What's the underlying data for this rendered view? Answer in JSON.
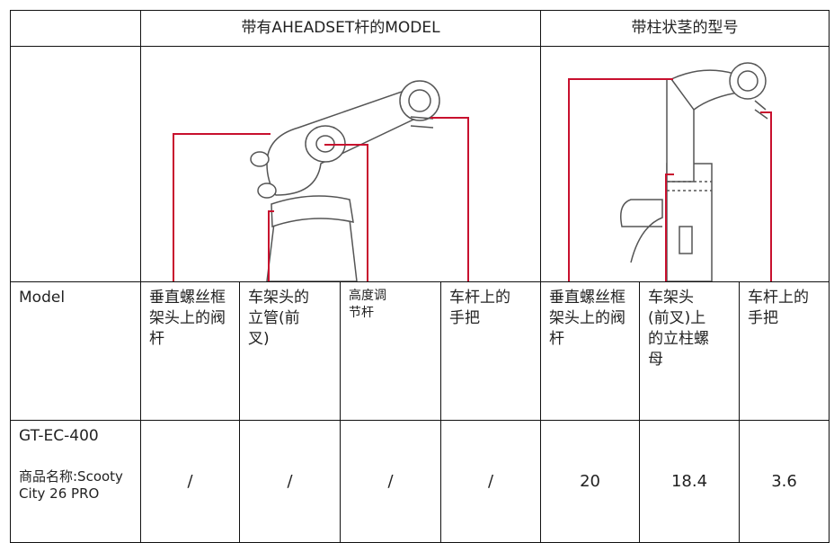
{
  "table": {
    "header": [
      "带有AHEADSET杆的MODEL",
      "带柱状茎的型号"
    ],
    "labels": [
      "Model",
      "垂直螺丝框架头上的阀杆",
      "车架头的立管(前叉)",
      "高度调节杆",
      "车杆上的手把",
      "垂直螺丝框架头上的阀杆",
      "车架头(前叉)上的立柱螺母",
      "车杆上的手把"
    ],
    "rows": [
      {
        "model": "GT-EC-400",
        "product_name": "商品名称:Scooty City 26 PRO",
        "values": [
          "/",
          "/",
          "/",
          "/",
          20,
          18.4,
          3.6
        ]
      }
    ]
  }
}
